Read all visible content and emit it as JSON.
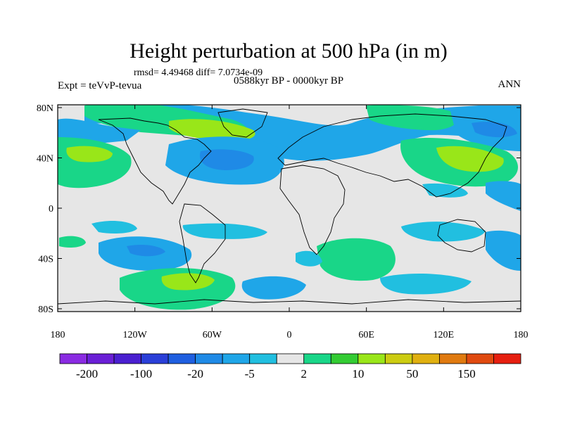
{
  "title": "Height perturbation at 500 hPa (in m)",
  "stats": "rmsd= 4.49468 diff= 7.0734e-09",
  "experiment": "Expt = teVvP-tevua",
  "period": "0588kyr BP - 0000kyr BP",
  "season": "ANN",
  "map": {
    "lon_ticks": [
      "180",
      "120W",
      "60W",
      "0",
      "60E",
      "120E",
      "180"
    ],
    "lat_ticks": [
      "80N",
      "40N",
      "0",
      "40S",
      "80S"
    ],
    "background_color": "#e6e6e6"
  },
  "colorbar": {
    "colors": [
      "#8a2be2",
      "#6a1fd6",
      "#4a1fd0",
      "#2a3fd8",
      "#1f5fe0",
      "#1f8ae6",
      "#1fa6e8",
      "#21bfe0",
      "#e6e6e6",
      "#19d688",
      "#33cc33",
      "#99e619",
      "#cccc11",
      "#e0b010",
      "#e07a10",
      "#e04a10",
      "#e61f10"
    ],
    "labels": [
      "-200",
      "-100",
      "-20",
      "-5",
      "2",
      "10",
      "50",
      "150"
    ],
    "label_slots": [
      1,
      3,
      5,
      7,
      9,
      11,
      13,
      15
    ]
  }
}
